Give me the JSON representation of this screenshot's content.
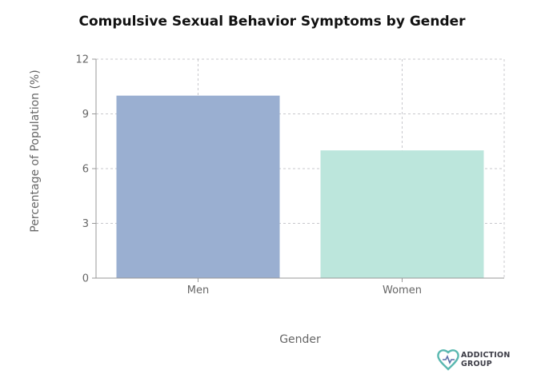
{
  "chart_data": {
    "type": "bar",
    "title": "Compulsive Sexual Behavior Symptoms by Gender",
    "xlabel": "Gender",
    "ylabel": "Percentage of Population (%)",
    "categories": [
      "Men",
      "Women"
    ],
    "values": [
      10,
      7
    ],
    "bar_colors": [
      "#9aafd1",
      "#bce6dc"
    ],
    "ylim": [
      0,
      12
    ],
    "yticks": [
      0,
      3,
      6,
      9,
      12
    ],
    "grid": true,
    "legend": "none"
  },
  "logo": {
    "line1": "ADDICTION",
    "line2": "GROUP",
    "colors": [
      "#5ab8b0",
      "#5a6fa8"
    ]
  }
}
